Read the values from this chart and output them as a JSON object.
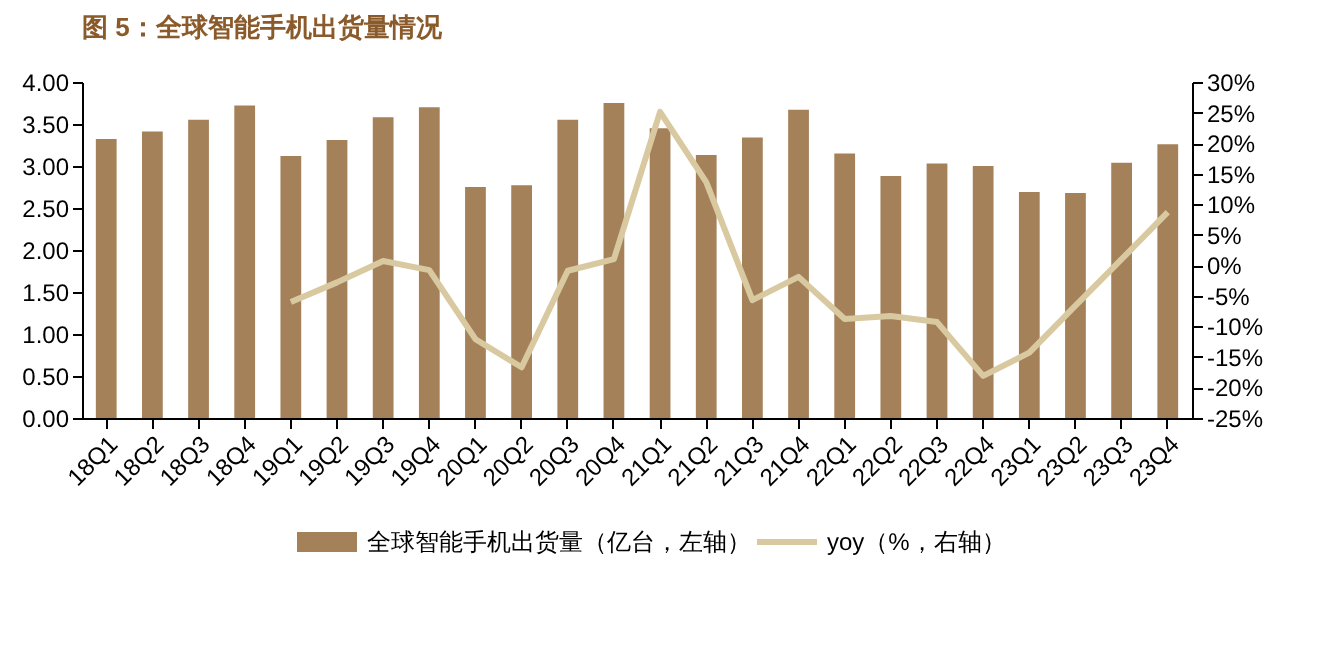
{
  "chart_data": {
    "type": "bar",
    "title": "图 5：全球智能手机出货量情况",
    "categories": [
      "18Q1",
      "18Q2",
      "18Q3",
      "18Q4",
      "19Q1",
      "19Q2",
      "19Q3",
      "19Q4",
      "20Q1",
      "20Q2",
      "20Q3",
      "20Q4",
      "21Q1",
      "21Q2",
      "21Q3",
      "21Q4",
      "22Q1",
      "22Q2",
      "22Q3",
      "22Q4",
      "23Q1",
      "23Q2",
      "23Q3",
      "23Q4"
    ],
    "series": [
      {
        "name": "全球智能手机出货量（亿台，左轴）",
        "color": "#a5815a",
        "values": [
          3.32,
          3.41,
          3.55,
          3.72,
          3.12,
          3.31,
          3.58,
          3.7,
          2.75,
          2.77,
          3.55,
          3.75,
          3.45,
          3.13,
          3.34,
          3.67,
          3.15,
          2.88,
          3.03,
          3.0,
          2.69,
          2.68,
          3.04,
          3.26
        ]
      },
      {
        "name": "yoy（%，右轴）",
        "color": "#d9c9a0",
        "type": "line",
        "axis": "y2",
        "values": [
          null,
          null,
          null,
          null,
          -6.0,
          -2.8,
          0.7,
          -0.8,
          -12.1,
          -16.7,
          -0.9,
          1.0,
          25.1,
          13.6,
          -5.7,
          -1.9,
          -8.8,
          -8.3,
          -9.3,
          -18.1,
          -14.3,
          -6.6,
          1.0,
          8.7
        ]
      }
    ],
    "ylim": [
      0,
      4
    ],
    "yticks": [
      {
        "value": 0,
        "label": "0.00"
      },
      {
        "value": 0.5,
        "label": "0.50"
      },
      {
        "value": 1,
        "label": "1.00"
      },
      {
        "value": 1.5,
        "label": "1.50"
      },
      {
        "value": 2,
        "label": "2.00"
      },
      {
        "value": 2.5,
        "label": "2.50"
      },
      {
        "value": 3,
        "label": "3.00"
      },
      {
        "value": 3.5,
        "label": "3.50"
      },
      {
        "value": 4,
        "label": "4.00"
      }
    ],
    "y2lim": [
      -25,
      30
    ],
    "y2ticks": [
      {
        "value": -25,
        "label": "-25%"
      },
      {
        "value": -20,
        "label": "-20%"
      },
      {
        "value": -15,
        "label": "-15%"
      },
      {
        "value": -10,
        "label": "-10%"
      },
      {
        "value": -5,
        "label": "-5%"
      },
      {
        "value": 0,
        "label": "0%"
      },
      {
        "value": 5,
        "label": "5%"
      },
      {
        "value": 10,
        "label": "10%"
      },
      {
        "value": 15,
        "label": "15%"
      },
      {
        "value": 20,
        "label": "20%"
      },
      {
        "value": 25,
        "label": "25%"
      },
      {
        "value": 30,
        "label": "30%"
      }
    ],
    "legend": "bottom",
    "grid": false
  }
}
